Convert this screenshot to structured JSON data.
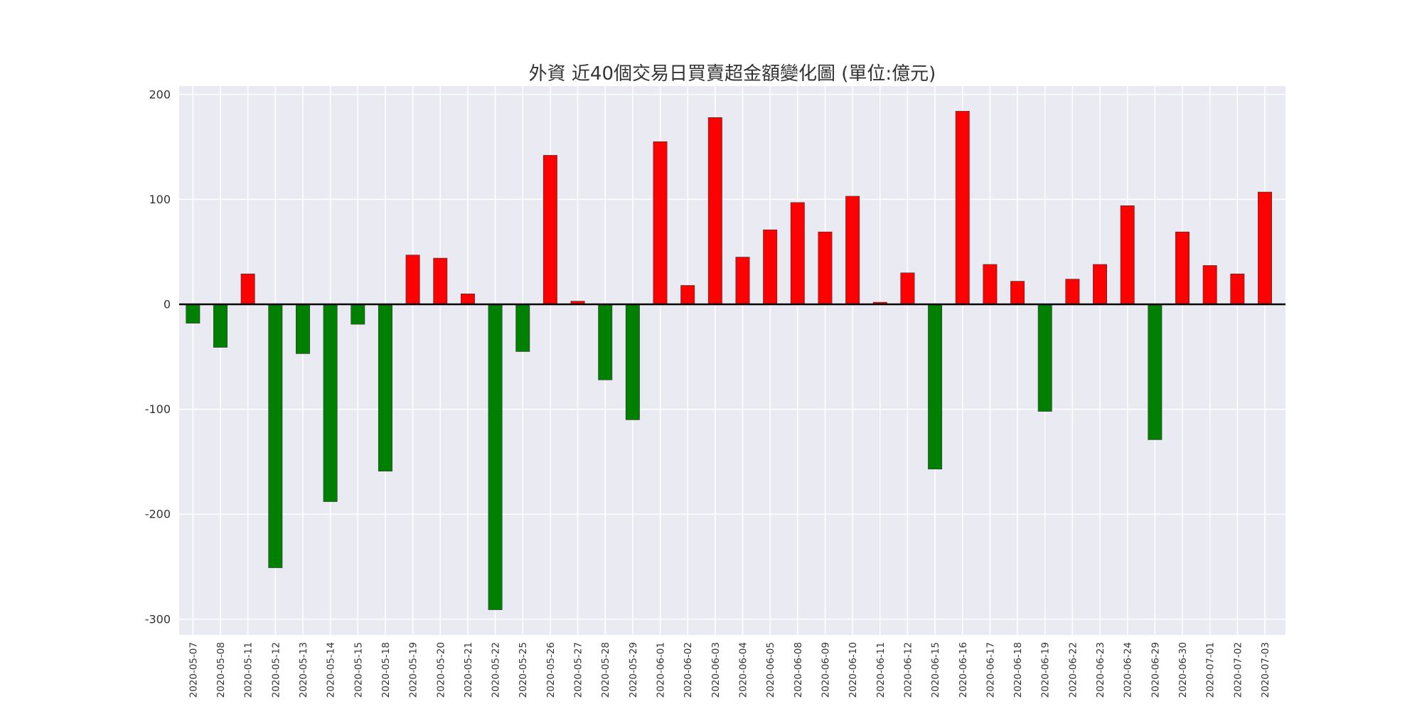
{
  "chart_data": {
    "type": "bar",
    "title": "外資  近40個交易日買賣超金額變化圖 (單位:億元)",
    "xlabel": "",
    "ylabel": "",
    "ylim": [
      -315,
      208
    ],
    "yticks": [
      200,
      100,
      0,
      -100,
      -200,
      -300
    ],
    "grid": true,
    "colors": {
      "positive": "#ff0000",
      "negative": "#008000",
      "background": "#eaeaf2",
      "grid": "#ffffff",
      "zero_line": "#000000"
    },
    "categories": [
      "2020-05-07",
      "2020-05-08",
      "2020-05-11",
      "2020-05-12",
      "2020-05-13",
      "2020-05-14",
      "2020-05-15",
      "2020-05-18",
      "2020-05-19",
      "2020-05-20",
      "2020-05-21",
      "2020-05-22",
      "2020-05-25",
      "2020-05-26",
      "2020-05-27",
      "2020-05-28",
      "2020-05-29",
      "2020-06-01",
      "2020-06-02",
      "2020-06-03",
      "2020-06-04",
      "2020-06-05",
      "2020-06-08",
      "2020-06-09",
      "2020-06-10",
      "2020-06-11",
      "2020-06-12",
      "2020-06-15",
      "2020-06-16",
      "2020-06-17",
      "2020-06-18",
      "2020-06-19",
      "2020-06-22",
      "2020-06-23",
      "2020-06-24",
      "2020-06-29",
      "2020-06-30",
      "2020-07-01",
      "2020-07-02",
      "2020-07-03"
    ],
    "values": [
      -18,
      -41,
      29,
      -251,
      -47,
      -188,
      -19,
      -159,
      47,
      44,
      10,
      -291,
      -45,
      142,
      3,
      -72,
      -110,
      155,
      18,
      178,
      45,
      71,
      97,
      69,
      103,
      2,
      30,
      -157,
      184,
      38,
      22,
      -102,
      24,
      38,
      94,
      -129,
      69,
      37,
      29,
      107
    ]
  }
}
